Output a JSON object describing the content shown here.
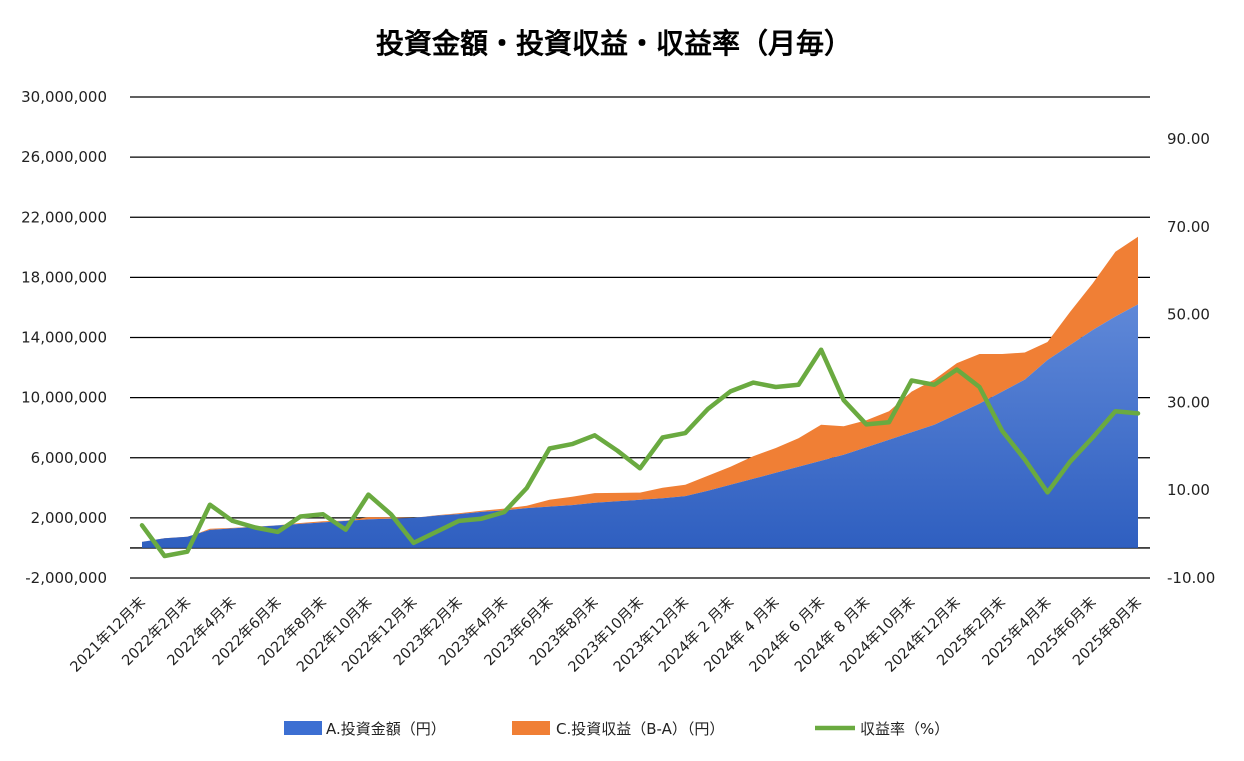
{
  "chart_data": {
    "type": "area",
    "title": "投資金額・投資収益・収益率（月毎）",
    "colors": {
      "invest": "#3264c8",
      "investLight": "#5a86d6",
      "profit": "#f07f35",
      "rate": "#6aaa40",
      "grid": "#000000"
    },
    "y_left": {
      "min": -2000000,
      "max": 30000000,
      "ticks": [
        -2000000,
        2000000,
        6000000,
        10000000,
        14000000,
        18000000,
        22000000,
        26000000,
        30000000
      ],
      "tick_labels": [
        "-2,000,000",
        "2,000,000",
        "6,000,000",
        "10,000,000",
        "14,000,000",
        "18,000,000",
        "22,000,000",
        "26,000,000",
        "30,000,000"
      ]
    },
    "y_right": {
      "min": -10,
      "max": 110,
      "ticks": [
        -10,
        10,
        30,
        50,
        70,
        90
      ],
      "tick_labels": [
        "-10.00",
        "10.00",
        "30.00",
        "50.00",
        "70.00",
        "90.00"
      ]
    },
    "months": 45,
    "x_tick_labels": [
      "2021年12月末",
      "2022年2月末",
      "2022年4月末",
      "2022年6月末",
      "2022年8月末",
      "2022年10月末",
      "2022年12月末",
      "2023年2月末",
      "2023年4月末",
      "2023年6月末",
      "2023年8月末",
      "2023年10月末",
      "2023年12月末",
      "2024年 2 月末",
      "2024年 4 月末",
      "2024年 6 月末",
      "2024年 8 月末",
      "2024年10月末",
      "2024年12月末",
      "2025年2月末",
      "2025年4月末",
      "2025年6月末",
      "2025年8月末"
    ],
    "series": [
      {
        "name": "A.投資金額（円）",
        "type": "area",
        "axis": "left",
        "values": [
          400000,
          650000,
          750000,
          1200000,
          1300000,
          1400000,
          1500000,
          1600000,
          1700000,
          1800000,
          1900000,
          1950000,
          2000000,
          2150000,
          2250000,
          2400000,
          2500000,
          2650000,
          2750000,
          2850000,
          3000000,
          3100000,
          3200000,
          3300000,
          3450000,
          3800000,
          4200000,
          4600000,
          5000000,
          5400000,
          5800000,
          6200000,
          6700000,
          7200000,
          7700000,
          8200000,
          8900000,
          9600000,
          10400000,
          11200000,
          12500000,
          13500000,
          14500000,
          15400000,
          16200000
        ]
      },
      {
        "name": "C.投資収益（B-A）（円）",
        "type": "area",
        "axis": "left",
        "stacked_on": "A.投資金額（円）",
        "values": [
          5000,
          -30000,
          -40000,
          70000,
          35000,
          20000,
          10000,
          60000,
          70000,
          20000,
          150000,
          80000,
          0,
          30000,
          60000,
          80000,
          120000,
          160000,
          450000,
          550000,
          650000,
          560000,
          480000,
          700000,
          750000,
          1000000,
          1200000,
          1500000,
          1650000,
          1900000,
          2400000,
          1900000,
          1800000,
          1900000,
          2700000,
          3000000,
          3400000,
          3300000,
          2500000,
          1800000,
          1200000,
          2200000,
          3100000,
          4300000,
          4500000
        ]
      },
      {
        "name": "収益率（%）",
        "type": "line",
        "axis": "right",
        "values": [
          2.0,
          -5.0,
          -4.0,
          6.7,
          3.0,
          1.5,
          0.5,
          4.0,
          4.5,
          1.0,
          9.0,
          4.5,
          -2.0,
          0.5,
          3.0,
          3.5,
          5.0,
          10.5,
          19.5,
          20.5,
          22.5,
          19.0,
          15.0,
          22.0,
          23.0,
          28.5,
          32.5,
          34.5,
          33.5,
          34.0,
          42.0,
          30.5,
          25.0,
          25.5,
          35.0,
          34.0,
          37.5,
          33.5,
          23.5,
          17.0,
          9.5,
          16.5,
          22.0,
          28.0,
          27.5
        ]
      }
    ],
    "legend": {
      "position": "bottom",
      "items": [
        {
          "label": "A.投資金額（円）",
          "kind": "area",
          "color": "#3c6fd2"
        },
        {
          "label": "C.投資収益（B-A）（円）",
          "kind": "area",
          "color": "#f07f35"
        },
        {
          "label": "収益率（%）",
          "kind": "line",
          "color": "#6aaa40"
        }
      ]
    },
    "grid": true
  }
}
